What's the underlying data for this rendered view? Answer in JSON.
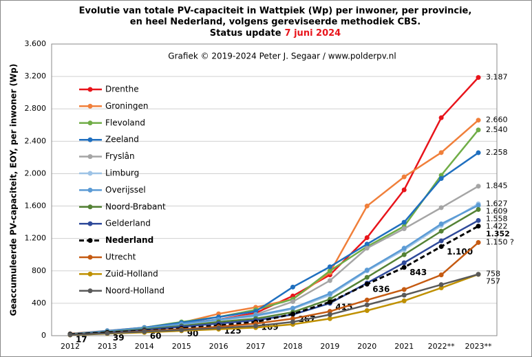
{
  "chart_data": {
    "type": "line",
    "title": [
      "Evolutie van totale PV-capaciteit in Wattpiek (Wp) per inwoner, per provincie,",
      "en heel Nederland, volgens gereviseerde methodiek CBS."
    ],
    "status_label": "Status update",
    "status_date": "7 juni 2024",
    "subtitle": "Grafiek © 2019-2024 Peter J. Segaar / www.polderpv.nl",
    "y_label": "Geaccumuleerde PV-capaciteit, EOY, per inwoner (Wp)",
    "categories": [
      "2012",
      "2013",
      "2014",
      "2015",
      "2016",
      "2017",
      "2018",
      "2019",
      "2020",
      "2021",
      "2022**",
      "2023**"
    ],
    "ylim": [
      0,
      3600
    ],
    "yticks": [
      0,
      400,
      800,
      {
        "value": 1200,
        "label": "1.200"
      },
      {
        "value": 1600,
        "label": "1.600"
      },
      {
        "value": 2000,
        "label": "2.000"
      },
      {
        "value": 2400,
        "label": "2.400"
      },
      {
        "value": 2800,
        "label": "2.800"
      },
      {
        "value": 3200,
        "label": "3.200"
      },
      {
        "value": 3600,
        "label": "3.600"
      }
    ],
    "grid": true,
    "legend": "upper left",
    "series": [
      {
        "name": "Drenthe",
        "color": "#e8141b",
        "values": [
          20,
          50,
          90,
          150,
          200,
          280,
          490,
          750,
          1210,
          1800,
          2690,
          3187
        ],
        "value_labels": [
          null,
          null,
          null,
          null,
          null,
          null,
          null,
          null,
          null,
          null,
          null,
          "3.187"
        ]
      },
      {
        "name": "Groningen",
        "color": "#f07f3a",
        "values": [
          25,
          60,
          100,
          160,
          270,
          350,
          450,
          780,
          1600,
          1960,
          2260,
          2660
        ],
        "value_labels": [
          null,
          null,
          null,
          null,
          null,
          null,
          null,
          null,
          null,
          null,
          null,
          "2.660"
        ]
      },
      {
        "name": "Flevoland",
        "color": "#70ad47",
        "values": [
          20,
          55,
          100,
          170,
          230,
          320,
          450,
          800,
          1100,
          1350,
          1980,
          2540
        ],
        "value_labels": [
          null,
          null,
          null,
          null,
          null,
          null,
          null,
          null,
          null,
          null,
          null,
          "2.540"
        ]
      },
      {
        "name": "Zeeland",
        "color": "#1f6fbf",
        "values": [
          20,
          60,
          100,
          160,
          230,
          300,
          600,
          850,
          1130,
          1400,
          1940,
          2258
        ],
        "value_labels": [
          null,
          null,
          null,
          null,
          null,
          null,
          null,
          null,
          null,
          null,
          null,
          "2.258"
        ]
      },
      {
        "name": "Fryslân",
        "color": "#a5a5a5",
        "values": [
          15,
          45,
          80,
          140,
          200,
          260,
          420,
          680,
          1080,
          1320,
          1580,
          1845
        ],
        "value_labels": [
          null,
          null,
          null,
          null,
          null,
          null,
          null,
          null,
          null,
          null,
          null,
          "1.845"
        ]
      },
      {
        "name": "Limburg",
        "color": "#9dc3e6",
        "values": [
          20,
          50,
          90,
          140,
          190,
          240,
          330,
          500,
          800,
          1060,
          1360,
          1627
        ],
        "value_labels": [
          null,
          null,
          null,
          null,
          null,
          null,
          null,
          null,
          null,
          null,
          null,
          "1.627"
        ]
      },
      {
        "name": "Overijssel",
        "color": "#5b9bd5",
        "values": [
          20,
          55,
          95,
          145,
          200,
          250,
          340,
          520,
          810,
          1080,
          1380,
          1609
        ],
        "value_labels": [
          null,
          null,
          null,
          null,
          null,
          null,
          null,
          null,
          null,
          null,
          null,
          "1.609"
        ]
      },
      {
        "name": "Noord-Brabant",
        "color": "#548235",
        "values": [
          15,
          45,
          80,
          120,
          170,
          210,
          290,
          450,
          720,
          1000,
          1290,
          1558
        ],
        "value_labels": [
          null,
          null,
          null,
          null,
          null,
          null,
          null,
          null,
          null,
          null,
          null,
          "1.558"
        ]
      },
      {
        "name": "Gelderland",
        "color": "#2f4a9a",
        "values": [
          12,
          40,
          70,
          110,
          150,
          190,
          260,
          400,
          650,
          900,
          1170,
          1422
        ],
        "value_labels": [
          null,
          null,
          null,
          null,
          null,
          null,
          null,
          null,
          null,
          null,
          null,
          "1.422"
        ]
      },
      {
        "name": "Nederland",
        "color": "#000000",
        "dashed": true,
        "values": [
          17,
          39,
          60,
          90,
          125,
          169,
          267,
          415,
          636,
          843,
          1100,
          1352
        ],
        "value_labels": [
          "17",
          "39",
          "60",
          "90",
          "125",
          "169",
          "267",
          "415",
          "636",
          "843",
          "1.100",
          "1.352"
        ]
      },
      {
        "name": "Utrecht",
        "color": "#c55a11",
        "values": [
          10,
          30,
          55,
          80,
          110,
          150,
          210,
          300,
          440,
          570,
          750,
          1150
        ],
        "value_labels": [
          null,
          null,
          null,
          null,
          null,
          null,
          null,
          null,
          null,
          null,
          null,
          "1.150 ?"
        ]
      },
      {
        "name": "Zuid-Holland",
        "color": "#bf9000",
        "values": [
          8,
          25,
          40,
          60,
          80,
          100,
          140,
          210,
          310,
          430,
          590,
          757
        ],
        "value_labels": [
          null,
          null,
          null,
          null,
          null,
          null,
          null,
          null,
          null,
          null,
          null,
          "757"
        ]
      },
      {
        "name": "Noord-Holland",
        "color": "#595959",
        "values": [
          10,
          30,
          50,
          70,
          95,
          120,
          170,
          260,
          380,
          500,
          630,
          758
        ],
        "value_labels": [
          null,
          null,
          null,
          null,
          null,
          null,
          null,
          null,
          null,
          null,
          null,
          "758"
        ]
      }
    ]
  }
}
